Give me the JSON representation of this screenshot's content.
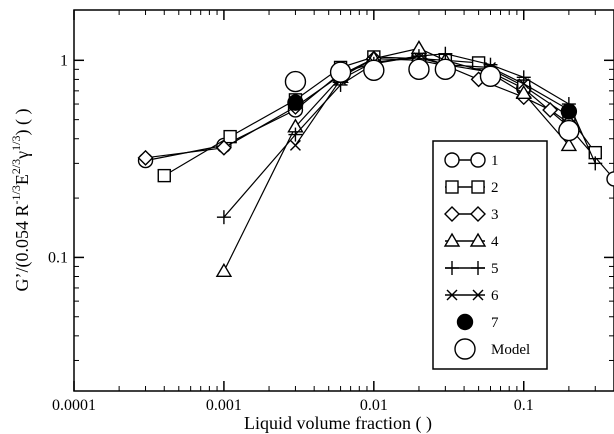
{
  "chart_data": {
    "type": "scatter",
    "xscale": "log",
    "yscale": "log",
    "xlim": [
      0.0001,
      0.4
    ],
    "ylim": [
      0.021,
      1.8
    ],
    "xlabel": "Liquid volume fraction   ( )",
    "ylabel": "G’/(0.054 R⁻¹ᐟ³E²ᐟ³γ¹ᐟ³)   ( )",
    "ylabel_parts": {
      "prefix": "G’/(0.054 R",
      "sup1": "-1/3",
      "mid1": "E",
      "sup2": "2/3",
      "mid2": "γ",
      "sup3": "1/3",
      "suffix": ")   ( )"
    },
    "x_ticks": [
      {
        "value": 0.0001,
        "label": "0.0001"
      },
      {
        "value": 0.001,
        "label": "0.001"
      },
      {
        "value": 0.01,
        "label": "0.01"
      },
      {
        "value": 0.1,
        "label": "0.1"
      }
    ],
    "y_ticks": [
      {
        "value": 0.1,
        "label": "0.1"
      },
      {
        "value": 1,
        "label": "1"
      }
    ],
    "legend_position": "lower-right",
    "series": [
      {
        "name": "1",
        "marker": "circle-open",
        "line": true,
        "x": [
          0.0003,
          0.001,
          0.003,
          0.006,
          0.01,
          0.02,
          0.03,
          0.06,
          0.1,
          0.2,
          0.4
        ],
        "y": [
          0.31,
          0.37,
          0.56,
          0.86,
          0.97,
          1.05,
          0.95,
          0.87,
          0.72,
          0.46,
          0.25
        ]
      },
      {
        "name": "2",
        "marker": "square-plus",
        "line": true,
        "x": [
          0.0004,
          0.0011,
          0.003,
          0.006,
          0.01,
          0.02,
          0.03,
          0.05,
          0.1,
          0.2,
          0.3
        ],
        "y": [
          0.26,
          0.41,
          0.63,
          0.92,
          1.04,
          1.02,
          1.0,
          0.97,
          0.74,
          0.52,
          0.34
        ]
      },
      {
        "name": "3",
        "marker": "diamond-open",
        "line": true,
        "x": [
          0.0003,
          0.001,
          0.003,
          0.006,
          0.01,
          0.02,
          0.03,
          0.05,
          0.1,
          0.15,
          0.2
        ],
        "y": [
          0.32,
          0.36,
          0.58,
          0.84,
          1.02,
          1.0,
          0.94,
          0.8,
          0.65,
          0.56,
          0.48
        ]
      },
      {
        "name": "4",
        "marker": "triangle-open",
        "line": true,
        "x": [
          0.001,
          0.003,
          0.006,
          0.01,
          0.02,
          0.03,
          0.06,
          0.1,
          0.2
        ],
        "y": [
          0.085,
          0.46,
          0.82,
          1.02,
          1.15,
          1.0,
          0.86,
          0.68,
          0.37
        ]
      },
      {
        "name": "5",
        "marker": "plus",
        "line": true,
        "x": [
          0.001,
          0.003,
          0.006,
          0.01,
          0.02,
          0.03,
          0.06,
          0.1,
          0.2,
          0.3
        ],
        "y": [
          0.16,
          0.42,
          0.75,
          0.96,
          1.05,
          1.08,
          0.95,
          0.82,
          0.6,
          0.3
        ]
      },
      {
        "name": "6",
        "marker": "cross",
        "line": true,
        "x": [
          0.003,
          0.006,
          0.01,
          0.02,
          0.03,
          0.06,
          0.1,
          0.2
        ],
        "y": [
          0.37,
          0.8,
          0.98,
          1.03,
          0.95,
          0.92,
          0.76,
          0.56
        ]
      },
      {
        "name": "7",
        "marker": "circle-filled",
        "line": false,
        "x": [
          0.003,
          0.2
        ],
        "y": [
          0.61,
          0.55
        ]
      },
      {
        "name": "Model",
        "marker": "circle-large-open",
        "line": false,
        "x": [
          0.003,
          0.006,
          0.01,
          0.02,
          0.03,
          0.06,
          0.2
        ],
        "y": [
          0.78,
          0.87,
          0.89,
          0.9,
          0.9,
          0.83,
          0.44
        ]
      }
    ]
  }
}
